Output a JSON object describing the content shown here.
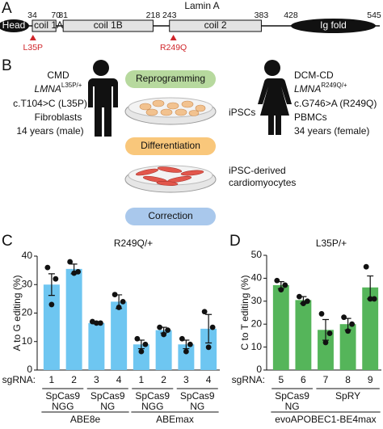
{
  "panel_a": {
    "letter": "A",
    "title": "Lamin A",
    "domains": [
      "Head",
      "coil 1A",
      "coil 1B",
      "coil 2",
      "Ig fold"
    ],
    "positions": [
      34,
      70,
      81,
      218,
      243,
      383,
      428,
      545
    ],
    "mutations": [
      "L35P",
      "R249Q"
    ]
  },
  "panel_b": {
    "letter": "B",
    "left": {
      "lines": [
        "CMD",
        "c.T104>C (L35P)",
        "Fibroblasts",
        "14 years (male)"
      ],
      "gene": "LMNA",
      "genotype": "L35P/+"
    },
    "right": {
      "lines": [
        "DCM-CD",
        "c.G746>A (R249Q)",
        "PBMCs",
        "34 years (female)"
      ],
      "gene": "LMNA",
      "genotype": "R249Q/+"
    },
    "steps": [
      "Reprogramming",
      "Differentiation",
      "Correction"
    ],
    "cells": [
      "iPSCs",
      "iPSC-derived",
      "cardiomyocytes"
    ]
  },
  "chart_data": [
    {
      "type": "bar",
      "letter": "C",
      "title": "R249Q/+",
      "y_label": "A to G editing (%)",
      "sgrna_label": "sgRNA:",
      "color": "#6ec6f1",
      "categories": [
        "1",
        "2",
        "3",
        "4",
        "1",
        "2",
        "3",
        "4"
      ],
      "values": [
        30,
        35.5,
        16.5,
        24,
        9,
        14,
        9,
        14.5
      ],
      "errors": [
        3.8,
        1.7,
        0.3,
        2.4,
        1.5,
        1.0,
        1.5,
        5.0
      ],
      "points": [
        [
          36,
          32,
          23
        ],
        [
          38,
          34.5,
          34
        ],
        [
          17,
          16.5,
          16.5
        ],
        [
          26.5,
          24,
          22
        ],
        [
          11,
          9,
          6.5
        ],
        [
          15,
          14,
          12.5
        ],
        [
          11,
          9,
          6.5
        ],
        [
          20.5,
          15,
          8
        ]
      ],
      "groups": [
        [
          "SpCas9",
          "NGG"
        ],
        [
          "SpCas9",
          "NG"
        ],
        [
          "SpCas9",
          "NGG"
        ],
        [
          "SpCas9",
          "NG"
        ]
      ],
      "supergroups": [
        "ABE8e",
        "ABEmax"
      ],
      "ylim": [
        0,
        40
      ],
      "yticks": [
        0,
        10,
        20,
        30,
        40
      ]
    },
    {
      "type": "bar",
      "letter": "D",
      "title": "L35P/+",
      "y_label": "C to T editing (%)",
      "sgrna_label": "sgRNA:",
      "color": "#55b55a",
      "categories": [
        "5",
        "6",
        "7",
        "8",
        "9"
      ],
      "values": [
        37,
        30.5,
        17.5,
        20,
        36
      ],
      "errors": [
        1.5,
        1.5,
        4.5,
        2.5,
        5
      ],
      "points": [
        [
          39,
          37,
          35
        ],
        [
          32,
          30,
          29
        ],
        [
          24.5,
          16,
          12
        ],
        [
          23,
          20,
          17
        ],
        [
          45,
          31,
          31
        ]
      ],
      "groups": [
        [
          "SpCas9",
          "NG"
        ],
        [
          "SpRY"
        ]
      ],
      "supergroups": [
        "evoAPOBEC1-BE4max"
      ],
      "ylim": [
        0,
        50
      ],
      "yticks": [
        0,
        10,
        20,
        30,
        40,
        50
      ]
    }
  ]
}
